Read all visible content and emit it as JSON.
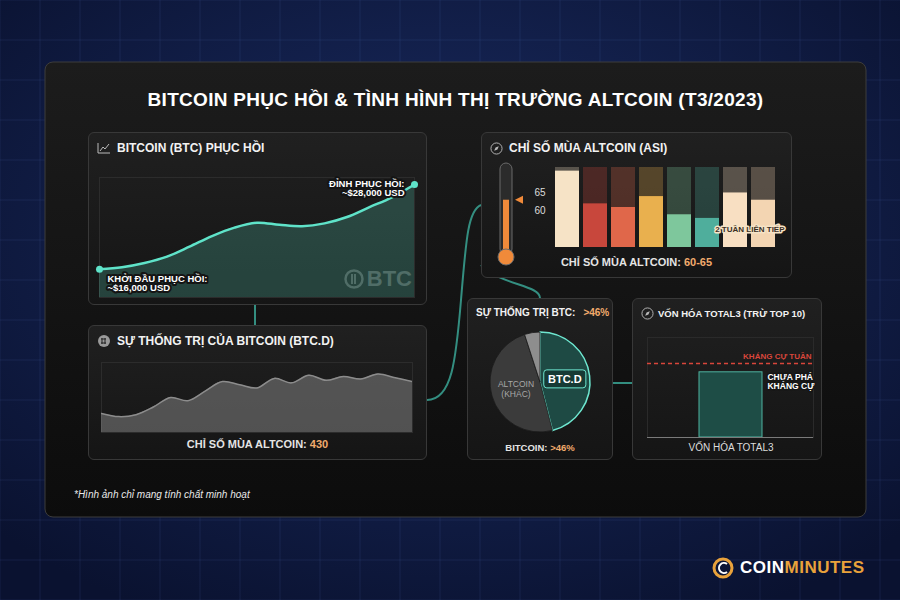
{
  "title": "BITCOIN PHỤC HỒI & TÌNH HÌNH THỊ TRƯỜNG ALTCOIN (T3/2023)",
  "footnote": "*Hình ảnh chỉ mang tính chất minh hoạt",
  "brand": {
    "first": "COIN",
    "second": "MINUTES"
  },
  "chart_data": [
    {
      "type": "area",
      "title": "BITCOIN (BTC) PHỤC HỒI",
      "values": [
        16000,
        16300,
        16900,
        17800,
        19200,
        20700,
        21900,
        22600,
        22300,
        22100,
        22500,
        23400,
        24800,
        26200,
        28000
      ],
      "color": "#5fe3c9",
      "ylim": [
        12000,
        29000
      ],
      "tick_labels": false,
      "watermark": "BTC",
      "annotations": [
        {
          "x": 0,
          "value": 16000,
          "text": "KHỞI ĐẦU PHỤC HỒI:",
          "label": "~$16,000 USD"
        },
        {
          "x": 14,
          "value": 28000,
          "text": "ĐỈNH PHỤC HỒI:",
          "label": "~$28,000 USD"
        }
      ]
    },
    {
      "type": "area",
      "title": "SỰ THỐNG TRỊ CỦA BITCOIN (BTC.D)",
      "values": [
        41,
        40.5,
        40.8,
        42,
        43.5,
        43,
        44.5,
        46,
        45.5,
        45,
        46.5,
        45.8,
        47,
        46.2,
        46.8,
        46.4,
        47.2,
        46.6,
        46
      ],
      "color": "#8c8c8c",
      "ylim": [
        38,
        49
      ],
      "tick_labels": false,
      "footer": {
        "text": "CHỈ SỐ MÙA ALTCOIN:",
        "value": 430
      }
    },
    {
      "type": "bar",
      "title": "CHỈ SỐ MÙA ALTCOIN (ASI)",
      "categories": [
        null,
        null,
        null,
        null,
        null,
        null,
        null,
        null
      ],
      "values": [
        71,
        62,
        61,
        64,
        59,
        58,
        65,
        63
      ],
      "colors": [
        "#f6e3c6",
        "#c8473c",
        "#e0674a",
        "#e9b04e",
        "#7ec79c",
        "#4fae9c",
        "#f8dfc2",
        "#f3d5b2"
      ],
      "ylim": [
        50,
        72
      ],
      "yticks": [
        60,
        65
      ],
      "tick_labels": "y",
      "thermometer": 63,
      "annotation": "2 TUẦN LIÊN TIẾP",
      "footer": {
        "text": "CHỈ SỐ MÙA ALTCOIN:",
        "label": "60-65"
      }
    },
    {
      "type": "pie",
      "title": "SỰ THỐNG TRỊ BTC:",
      "title_highlight": ">46%",
      "categories": [
        "BTC.D",
        "ALTCOIN (KHÁC)",
        null
      ],
      "values": [
        46,
        49,
        5
      ],
      "colors": [
        "#1e4a44",
        "#3b3b3b",
        "#8e8e8e"
      ],
      "footer": {
        "text": "BITCOIN:",
        "label": ">46%"
      }
    },
    {
      "type": "bar",
      "title": "VỐN HÓA TOTAL3 (TRỪ TOP 10)",
      "categories": [
        "VỐN HÓA TOTAL3"
      ],
      "values": [
        88
      ],
      "color": "#1e4d46",
      "ylim": [
        0,
        135
      ],
      "tick_labels": "x",
      "resistance": {
        "value": 100,
        "label": "KHÁNG CỰ TUẦN",
        "color": "#d9463b"
      },
      "annotation": "CHƯA PHÁ KHÁNG CỰ"
    }
  ]
}
